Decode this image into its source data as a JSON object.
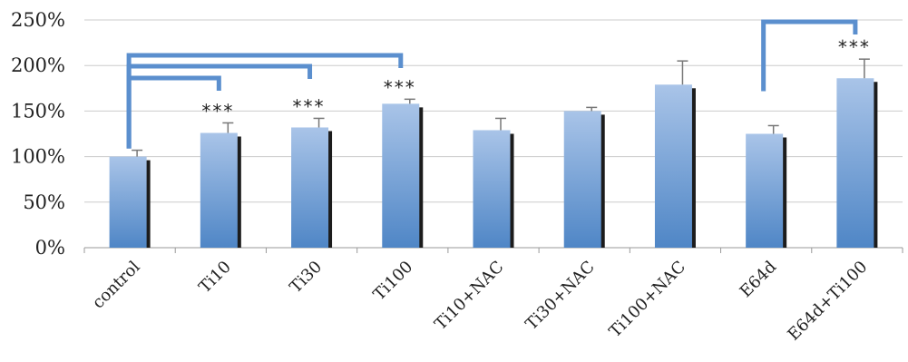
{
  "chart_data": {
    "type": "bar",
    "title": "",
    "xlabel": "",
    "ylabel": "",
    "ylim": [
      0,
      250
    ],
    "y_unit": "%",
    "y_ticks": [
      "0%",
      "50%",
      "100%",
      "150%",
      "200%",
      "250%"
    ],
    "y_tick_values": [
      0,
      50,
      100,
      150,
      200,
      250
    ],
    "grid": true,
    "legend": "none",
    "categories": [
      "control",
      "Ti10",
      "Ti30",
      "Ti100",
      "Ti10+NAC",
      "Ti30+NAC",
      "Ti100+NAC",
      "E64d",
      "E64d+Ti100"
    ],
    "values": [
      100,
      126,
      132,
      158,
      129,
      150,
      179,
      125,
      186
    ],
    "error": [
      7,
      11,
      10,
      5,
      13,
      4,
      26,
      9,
      21
    ],
    "significance": [
      {
        "category": "Ti10",
        "label": "***"
      },
      {
        "category": "Ti30",
        "label": "***"
      },
      {
        "category": "Ti100",
        "label": "***"
      },
      {
        "category": "E64d+Ti100",
        "label": "***"
      }
    ],
    "comparisons": [
      {
        "from": "control",
        "to": "Ti10"
      },
      {
        "from": "control",
        "to": "Ti30"
      },
      {
        "from": "control",
        "to": "Ti100"
      },
      {
        "from": "E64d",
        "to": "E64d+Ti100"
      }
    ],
    "colors": {
      "bar_top": "#a9c4e8",
      "bar_bottom": "#4f86c6",
      "bar_shadow": "#1c1c1c",
      "bracket": "#5b8fce",
      "grid": "#cccccc",
      "axis": "#999999",
      "error_bar": "#777777"
    }
  }
}
